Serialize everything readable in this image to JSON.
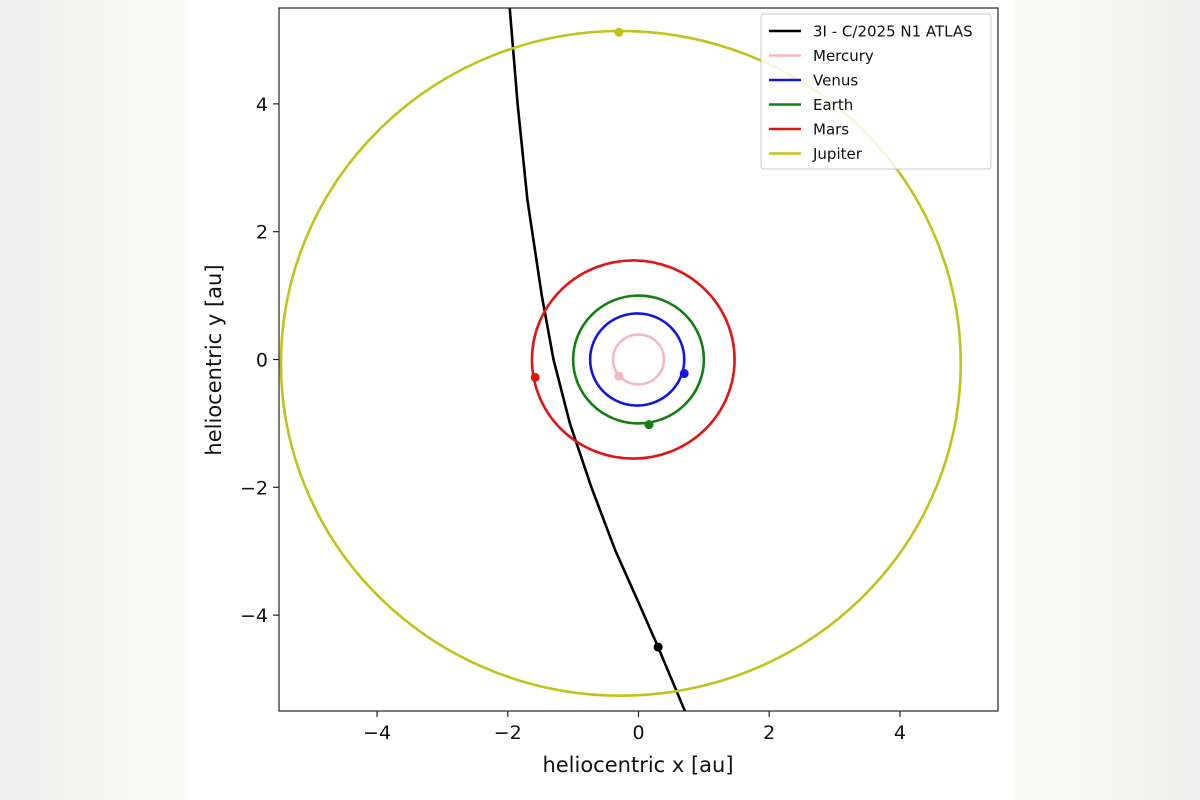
{
  "chart_data": {
    "type": "line",
    "xlabel": "heliocentric x [au]",
    "ylabel": "heliocentric y [au]",
    "xlim": [
      -5.5,
      5.5
    ],
    "ylim": [
      -5.5,
      5.5
    ],
    "x_ticks": [
      "−4",
      "−2",
      "0",
      "2",
      "4"
    ],
    "x_tick_values": [
      -4,
      -2,
      0,
      2,
      4
    ],
    "y_ticks": [
      "4",
      "2",
      "0",
      "−2",
      "−4"
    ],
    "y_tick_values": [
      4,
      2,
      0,
      -2,
      -4
    ],
    "grid": false,
    "legend_position": "top-right",
    "series": [
      {
        "name": "3I - C/2025 N1 ATLAS",
        "color": "#000000",
        "kind": "trajectory",
        "points": [
          [
            -1.97,
            5.5
          ],
          [
            -1.85,
            4.0
          ],
          [
            -1.7,
            2.5
          ],
          [
            -1.48,
            1.0
          ],
          [
            -1.3,
            0.0
          ],
          [
            -1.05,
            -1.0
          ],
          [
            -0.72,
            -2.0
          ],
          [
            -0.35,
            -3.0
          ],
          [
            0.0,
            -3.8
          ],
          [
            0.3,
            -4.5
          ],
          [
            0.71,
            -5.5
          ]
        ],
        "marker": [
          0.3,
          -4.5
        ]
      },
      {
        "name": "Mercury",
        "color": "#f5b8c0",
        "kind": "orbit",
        "center": [
          0.0,
          0.0
        ],
        "radius": 0.39,
        "marker": [
          -0.3,
          -0.26
        ]
      },
      {
        "name": "Venus",
        "color": "#1515e0",
        "kind": "orbit",
        "center": [
          -0.02,
          0.0
        ],
        "radius": 0.72,
        "marker": [
          0.7,
          -0.22
        ]
      },
      {
        "name": "Earth",
        "color": "#118011",
        "kind": "orbit",
        "center": [
          0.0,
          0.0
        ],
        "radius": 1.0,
        "marker": [
          0.16,
          -1.02
        ]
      },
      {
        "name": "Mars",
        "color": "#e01515",
        "kind": "orbit",
        "center": [
          -0.08,
          0.0
        ],
        "radius": 1.55,
        "marker": [
          -1.58,
          -0.28
        ]
      },
      {
        "name": "Jupiter",
        "color": "#c2c21a",
        "kind": "orbit",
        "center": [
          -0.27,
          -0.06
        ],
        "radius": 5.2,
        "marker": [
          -0.3,
          5.12
        ]
      }
    ]
  }
}
